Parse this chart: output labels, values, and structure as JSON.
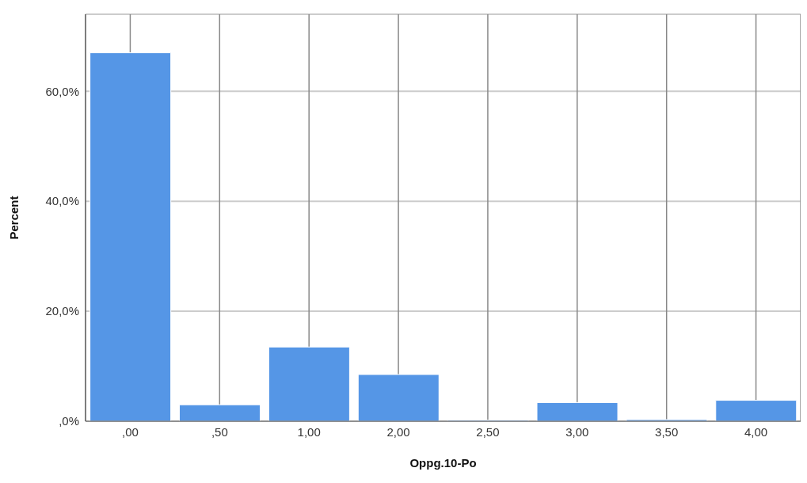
{
  "chart_data": {
    "type": "bar",
    "xlabel": "Oppg.10-Po",
    "ylabel": "Percent",
    "categories": [
      ",00",
      ",50",
      "1,00",
      "2,00",
      "2,50",
      "3,00",
      "3,50",
      "4,00"
    ],
    "values": [
      67.0,
      3.0,
      13.5,
      8.5,
      0.2,
      3.4,
      0.3,
      3.8
    ],
    "color": "#5596e6",
    "ylim": [
      0,
      74
    ],
    "yticks": [
      {
        "value": 0,
        "label": ",0%"
      },
      {
        "value": 20,
        "label": "20,0%"
      },
      {
        "value": 40,
        "label": "40,0%"
      },
      {
        "value": 60,
        "label": "60,0%"
      }
    ],
    "grid": true
  }
}
